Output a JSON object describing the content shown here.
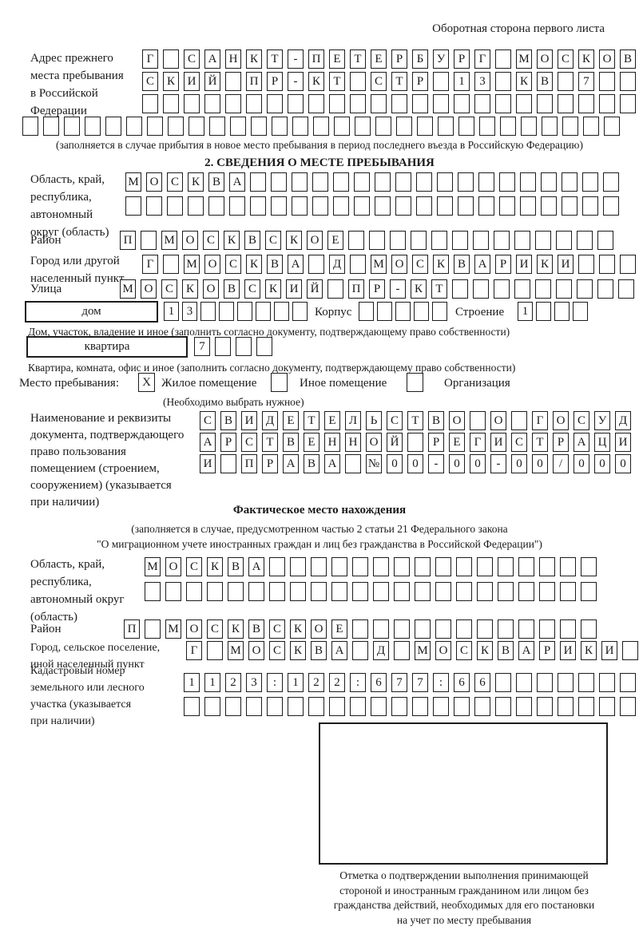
{
  "page": {
    "header_note": "Оборотная сторона первого листа"
  },
  "prev_address": {
    "label_lines": [
      "Адрес прежнего",
      "места пребывания",
      "в Российской",
      "Федерации"
    ],
    "rows": {
      "r1": [
        "Г",
        "",
        "С",
        "А",
        "Н",
        "К",
        "Т",
        "-",
        "П",
        "Е",
        "Т",
        "Е",
        "Р",
        "Б",
        "У",
        "Р",
        "Г",
        "",
        "М",
        "О",
        "С",
        "К",
        "О",
        "В"
      ],
      "r2": [
        "С",
        "К",
        "И",
        "Й",
        "",
        "П",
        "Р",
        "-",
        "К",
        "Т",
        "",
        "С",
        "Т",
        "Р",
        "",
        "1",
        "3",
        "",
        "К",
        "В",
        "",
        "7",
        "",
        ""
      ],
      "r3": [
        "",
        "",
        "",
        "",
        "",
        "",
        "",
        "",
        "",
        "",
        "",
        "",
        "",
        "",
        "",
        "",
        "",
        "",
        "",
        "",
        "",
        "",
        "",
        ""
      ],
      "r4": [
        "",
        "",
        "",
        "",
        "",
        "",
        "",
        "",
        "",
        "",
        "",
        "",
        "",
        "",
        "",
        "",
        "",
        "",
        "",
        "",
        "",
        "",
        "",
        "",
        "",
        "",
        "",
        "",
        ""
      ]
    },
    "caption": "(заполняется в случае прибытия в новое место пребывания в период последнего въезда в Российскую Федерацию)"
  },
  "section2": {
    "title": "2. СВЕДЕНИЯ О МЕСТЕ ПРЕБЫВАНИЯ",
    "oblast": {
      "label_lines": [
        "Область, край,",
        "республика,",
        "автономный",
        "округ (область)"
      ],
      "r1": [
        "М",
        "О",
        "С",
        "К",
        "В",
        "А",
        "",
        "",
        "",
        "",
        "",
        "",
        "",
        "",
        "",
        "",
        "",
        "",
        "",
        "",
        "",
        "",
        "",
        ""
      ],
      "r2": [
        "",
        "",
        "",
        "",
        "",
        "",
        "",
        "",
        "",
        "",
        "",
        "",
        "",
        "",
        "",
        "",
        "",
        "",
        "",
        "",
        "",
        "",
        "",
        ""
      ]
    },
    "rayon": {
      "label": "Район",
      "row": [
        "П",
        "",
        "М",
        "О",
        "С",
        "К",
        "В",
        "С",
        "К",
        "О",
        "Е",
        "",
        "",
        "",
        "",
        "",
        "",
        "",
        "",
        "",
        "",
        "",
        "",
        ""
      ]
    },
    "gorod": {
      "label_lines": [
        "Город или другой",
        "населенный пункт"
      ],
      "row": [
        "Г",
        "",
        "М",
        "О",
        "С",
        "К",
        "В",
        "А",
        "",
        "Д",
        "",
        "М",
        "О",
        "С",
        "К",
        "В",
        "А",
        "Р",
        "И",
        "К",
        "И",
        "",
        "",
        ""
      ]
    },
    "ulitsa": {
      "label": "Улица",
      "row": [
        "М",
        "О",
        "С",
        "К",
        "О",
        "В",
        "С",
        "К",
        "И",
        "Й",
        "",
        "П",
        "Р",
        "-",
        "К",
        "Т",
        "",
        "",
        "",
        "",
        "",
        "",
        "",
        "",
        ""
      ]
    },
    "dom": {
      "box_label": "дом",
      "cells": [
        "1",
        "3",
        "",
        "",
        "",
        "",
        "",
        ""
      ],
      "korpus_label": "Корпус",
      "korpus_cells": [
        "",
        "",
        "",
        "",
        ""
      ],
      "stroenie_label": "Строение",
      "stroenie_cells": [
        "1",
        "",
        "",
        ""
      ],
      "caption": "Дом, участок, владение и иное (заполнить согласно документу, подтверждающему право собственности)"
    },
    "kvartira": {
      "box_label": "квартира",
      "cells": [
        "7",
        "",
        "",
        ""
      ],
      "caption": "Квартира, комната, офис и иное (заполнить согласно документу, подтверждающему право собственности)"
    },
    "mesto": {
      "label": "Место пребывания:",
      "opt1_mark": "X",
      "opt1_label": "Жилое помещение",
      "opt2_mark": "",
      "opt2_label": "Иное помещение",
      "opt3_mark": "",
      "opt3_label": "Организация",
      "note": "(Необходимо выбрать нужное)"
    },
    "doc": {
      "label_lines": [
        "Наименование и реквизиты",
        "документа, подтверждающего",
        "право пользования",
        "помещением (строением,",
        "сооружением) (указывается",
        "при наличии)"
      ],
      "r1": [
        "С",
        "В",
        "И",
        "Д",
        "Е",
        "Т",
        "Е",
        "Л",
        "Ь",
        "С",
        "Т",
        "В",
        "О",
        "",
        "О",
        "",
        "Г",
        "О",
        "С",
        "У",
        "Д"
      ],
      "r2": [
        "А",
        "Р",
        "С",
        "Т",
        "В",
        "Е",
        "Н",
        "Н",
        "О",
        "Й",
        "",
        "Р",
        "Е",
        "Г",
        "И",
        "С",
        "Т",
        "Р",
        "А",
        "Ц",
        "И"
      ],
      "r3": [
        "И",
        "",
        "П",
        "Р",
        "А",
        "В",
        "А",
        "",
        "№",
        "0",
        "0",
        "-",
        "0",
        "0",
        "-",
        "0",
        "0",
        "/",
        "0",
        "0",
        "0"
      ]
    }
  },
  "fact": {
    "title": "Фактическое место нахождения",
    "caption_line1": "(заполняется в случае, предусмотренном частью 2 статьи 21 Федерального закона",
    "caption_line2": "\"О миграционном учете иностранных граждан и лиц без гражданства в Российской Федерации\")",
    "oblast": {
      "label_lines": [
        "Область, край,",
        "республика,",
        "автономный округ",
        "(область)"
      ],
      "r1": [
        "М",
        "О",
        "С",
        "К",
        "В",
        "А",
        "",
        "",
        "",
        "",
        "",
        "",
        "",
        "",
        "",
        "",
        "",
        "",
        "",
        "",
        "",
        ""
      ],
      "r2": [
        "",
        "",
        "",
        "",
        "",
        "",
        "",
        "",
        "",
        "",
        "",
        "",
        "",
        "",
        "",
        "",
        "",
        "",
        "",
        "",
        "",
        ""
      ]
    },
    "rayon": {
      "label": "Район",
      "row": [
        "П",
        "",
        "М",
        "О",
        "С",
        "К",
        "В",
        "С",
        "К",
        "О",
        "Е",
        "",
        "",
        "",
        "",
        "",
        "",
        "",
        "",
        "",
        "",
        "",
        ""
      ]
    },
    "gorod": {
      "label_lines": [
        "Город, сельское поселение,",
        "иной населенный пункт"
      ],
      "row": [
        "Г",
        "",
        "М",
        "О",
        "С",
        "К",
        "В",
        "А",
        "",
        "Д",
        "",
        "М",
        "О",
        "С",
        "К",
        "В",
        "А",
        "Р",
        "И",
        "К",
        "И",
        ""
      ]
    },
    "kadastr": {
      "label_lines": [
        "Кадастровый номер",
        "земельного или лесного",
        "участка (указывается",
        "при наличии)"
      ],
      "r1": [
        "1",
        "1",
        "2",
        "3",
        ":",
        "1",
        "2",
        "2",
        ":",
        "6",
        "7",
        "7",
        ":",
        "6",
        "6",
        "",
        "",
        "",
        "",
        "",
        "",
        ""
      ],
      "r2": [
        "",
        "",
        "",
        "",
        "",
        "",
        "",
        "",
        "",
        "",
        "",
        "",
        "",
        "",
        "",
        "",
        "",
        "",
        "",
        "",
        "",
        ""
      ]
    },
    "stamp_caption_lines": [
      "Отметка о подтверждении выполнения принимающей",
      "стороной и иностранным гражданином или лицом без",
      "гражданства действий, необходимых для его постановки",
      "на учет по месту пребывания"
    ]
  }
}
